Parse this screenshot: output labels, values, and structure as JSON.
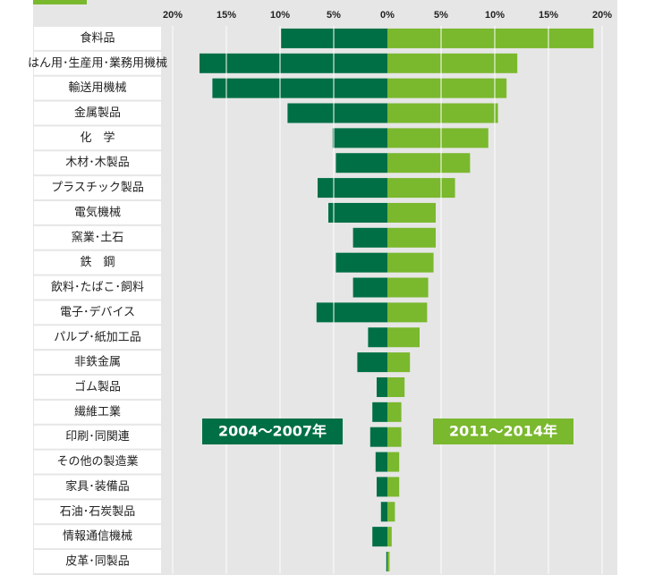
{
  "chart_data": {
    "type": "butterfly",
    "categories": [
      "食料品",
      "はん用･生産用･業務用機械",
      "輸送用機械",
      "金属製品",
      "化　学",
      "木材･木製品",
      "プラスチック製品",
      "電気機械",
      "窯業･土石",
      "鉄　鋼",
      "飲料･たばこ･飼料",
      "電子･デバイス",
      "パルプ･紙加工品",
      "非鉄金属",
      "ゴム製品",
      "繊維工業",
      "印刷･同関連",
      "その他の製造業",
      "家具･装備品",
      "石油･石炭製品",
      "情報通信機械",
      "皮革･同製品"
    ],
    "series": [
      {
        "name": "2004～2007年",
        "color": "#006f45",
        "side": "left",
        "values": [
          9.9,
          17.5,
          16.3,
          9.3,
          5.1,
          4.8,
          6.5,
          5.5,
          3.2,
          4.8,
          3.2,
          6.6,
          1.8,
          2.8,
          1.0,
          1.4,
          1.6,
          1.1,
          1.0,
          0.6,
          1.4,
          0.1
        ]
      },
      {
        "name": "2011～2014年",
        "color": "#7ab82e",
        "side": "right",
        "values": [
          19.2,
          12.1,
          11.1,
          10.3,
          9.4,
          7.7,
          6.3,
          4.5,
          4.5,
          4.3,
          3.8,
          3.7,
          3.0,
          2.1,
          1.6,
          1.3,
          1.3,
          1.1,
          1.1,
          0.7,
          0.4,
          0.2
        ]
      }
    ],
    "xlim": [
      0,
      20
    ],
    "xticks": [
      {
        "value": 0,
        "label": "0%"
      },
      {
        "value": 5,
        "label": "5%"
      },
      {
        "value": 10,
        "label": "10%"
      },
      {
        "value": 15,
        "label": "15%"
      },
      {
        "value": 20,
        "label": "20%"
      }
    ],
    "grid": true
  }
}
